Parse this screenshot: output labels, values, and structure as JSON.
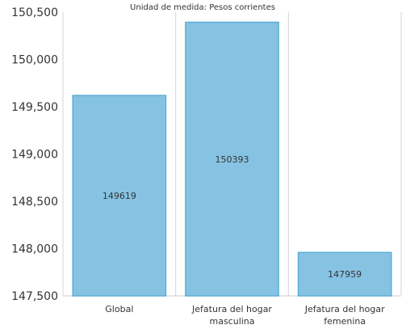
{
  "chart_data": {
    "type": "bar",
    "subtitle": "Unidad de medida: Pesos corrientes",
    "categories": [
      [
        "Global"
      ],
      [
        "Jefatura del hogar",
        "masculina"
      ],
      [
        "Jefatura del hogar",
        "femenina"
      ]
    ],
    "values": [
      149619,
      150393,
      147959
    ],
    "data_labels": [
      "149619",
      "150393",
      "147959"
    ],
    "ylim": [
      147500,
      150500
    ],
    "yticks": [
      147500,
      148000,
      148500,
      149000,
      149500,
      150000,
      150500
    ],
    "ytick_labels": [
      "147,500",
      "148,000",
      "148,500",
      "149,000",
      "149,500",
      "150,000",
      "150,500"
    ],
    "grid": "vertical",
    "bar_color": "#86c3e3",
    "bar_edge_color": "#5aaed6"
  }
}
